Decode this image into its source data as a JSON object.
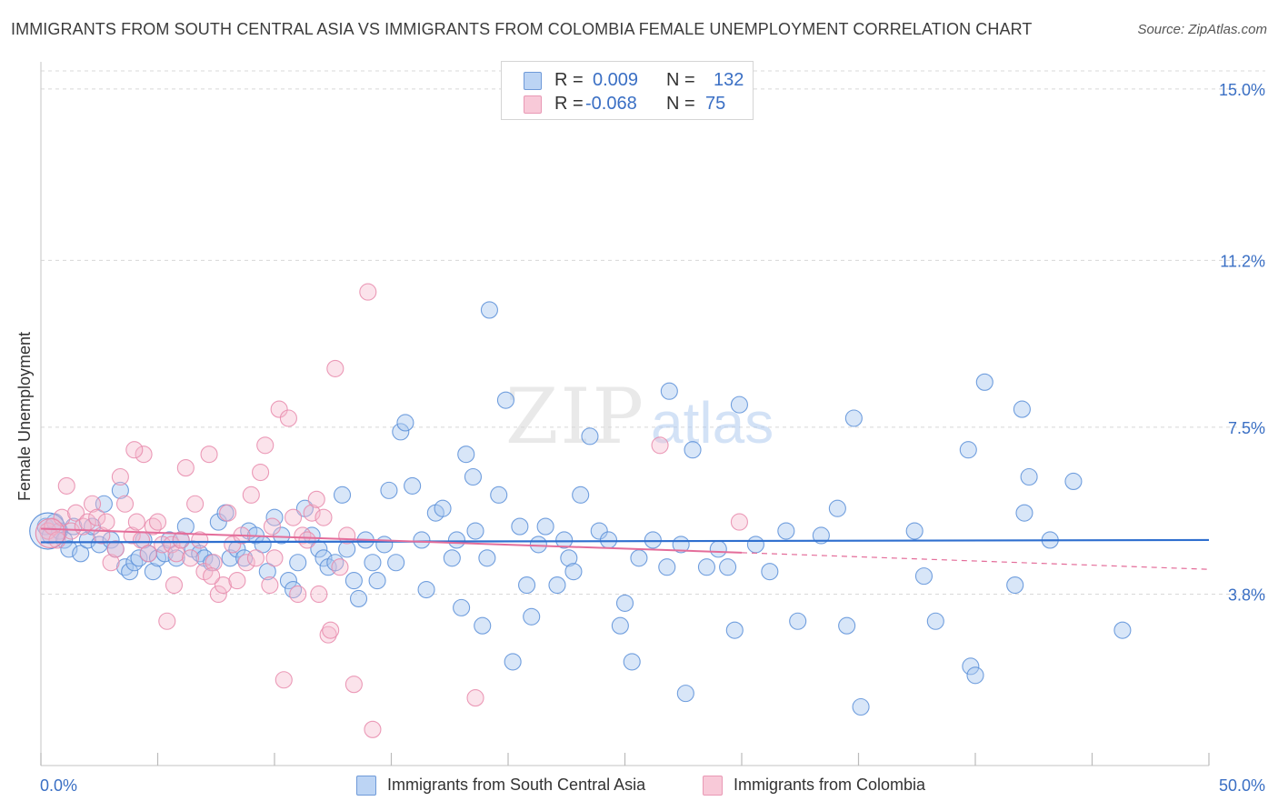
{
  "title": "IMMIGRANTS FROM SOUTH CENTRAL ASIA VS IMMIGRANTS FROM COLOMBIA FEMALE UNEMPLOYMENT CORRELATION CHART",
  "source": "Source: ZipAtlas.com",
  "watermark": {
    "zip": "ZIP",
    "atlas": "atlas"
  },
  "colors": {
    "blue": "#3a6fc4",
    "blue_fill": "#a9c7ef",
    "blue_line": "#2f6fcf",
    "pink": "#e46d9a",
    "pink_fill": "#f6b8cc",
    "grid": "#d8d8d8"
  },
  "legend": {
    "rows": [
      {
        "r_label": "R =",
        "r_value": "0.009",
        "n_label": "N =",
        "n_value": "132"
      },
      {
        "r_label": "R =",
        "r_value": "-0.068",
        "n_label": "N =",
        "n_value": "75"
      }
    ]
  },
  "bottom_legend": [
    {
      "label": "Immigrants from South Central Asia"
    },
    {
      "label": "Immigrants from Colombia"
    }
  ],
  "chart_data": {
    "type": "scatter",
    "title": "IMMIGRANTS FROM SOUTH CENTRAL ASIA VS IMMIGRANTS FROM COLOMBIA FEMALE UNEMPLOYMENT CORRELATION CHART",
    "xlabel": "",
    "ylabel": "Female Unemployment",
    "xlim": [
      0,
      50
    ],
    "ylim": [
      0,
      15.4
    ],
    "x_tick_labels": [
      "0.0%",
      "50.0%"
    ],
    "y_ticks": [
      3.8,
      7.5,
      11.2,
      15.0
    ],
    "y_tick_labels": [
      "3.8%",
      "7.5%",
      "11.2%",
      "15.0%"
    ],
    "grid": true,
    "legend_position": "top-center",
    "series": [
      {
        "name": "Immigrants from South Central Asia",
        "color": "#3a6fc4",
        "trend": {
          "x": [
            0,
            50
          ],
          "y": [
            4.95,
            5.0
          ],
          "style": "solid"
        },
        "points": [
          [
            0.2,
            5.3
          ],
          [
            0.4,
            5.1
          ],
          [
            0.6,
            5.4
          ],
          [
            0.8,
            5.2
          ],
          [
            1.0,
            5.0
          ],
          [
            1.2,
            4.8
          ],
          [
            1.4,
            5.3
          ],
          [
            1.7,
            4.7
          ],
          [
            2.0,
            5.0
          ],
          [
            2.2,
            5.3
          ],
          [
            2.5,
            4.9
          ],
          [
            2.7,
            5.8
          ],
          [
            3.0,
            5.0
          ],
          [
            3.2,
            4.8
          ],
          [
            3.4,
            6.1
          ],
          [
            3.6,
            4.4
          ],
          [
            3.8,
            4.3
          ],
          [
            4.0,
            4.5
          ],
          [
            4.2,
            4.6
          ],
          [
            4.4,
            5.0
          ],
          [
            4.6,
            4.7
          ],
          [
            4.8,
            4.3
          ],
          [
            5.0,
            4.6
          ],
          [
            5.3,
            4.7
          ],
          [
            5.5,
            5.0
          ],
          [
            5.8,
            4.6
          ],
          [
            6.0,
            5.0
          ],
          [
            6.2,
            5.3
          ],
          [
            6.5,
            4.8
          ],
          [
            6.8,
            4.7
          ],
          [
            7.0,
            4.6
          ],
          [
            7.3,
            4.5
          ],
          [
            7.6,
            5.4
          ],
          [
            7.9,
            5.6
          ],
          [
            8.1,
            4.6
          ],
          [
            8.4,
            4.8
          ],
          [
            8.7,
            4.6
          ],
          [
            8.9,
            5.2
          ],
          [
            9.2,
            5.1
          ],
          [
            9.5,
            4.9
          ],
          [
            9.7,
            4.3
          ],
          [
            10.0,
            5.5
          ],
          [
            10.3,
            5.1
          ],
          [
            10.6,
            4.1
          ],
          [
            10.8,
            3.9
          ],
          [
            11.0,
            4.5
          ],
          [
            11.3,
            5.7
          ],
          [
            11.6,
            5.1
          ],
          [
            11.9,
            4.8
          ],
          [
            12.1,
            4.6
          ],
          [
            12.3,
            4.4
          ],
          [
            12.6,
            4.5
          ],
          [
            12.9,
            6.0
          ],
          [
            13.1,
            4.8
          ],
          [
            13.4,
            4.1
          ],
          [
            13.6,
            3.7
          ],
          [
            13.9,
            5.0
          ],
          [
            14.2,
            4.5
          ],
          [
            14.4,
            4.1
          ],
          [
            14.7,
            4.9
          ],
          [
            14.9,
            6.1
          ],
          [
            15.2,
            4.5
          ],
          [
            15.4,
            7.4
          ],
          [
            15.6,
            7.6
          ],
          [
            15.9,
            6.2
          ],
          [
            16.3,
            5.0
          ],
          [
            16.5,
            3.9
          ],
          [
            16.9,
            5.6
          ],
          [
            17.2,
            5.7
          ],
          [
            17.6,
            4.6
          ],
          [
            17.8,
            5.0
          ],
          [
            18.0,
            3.5
          ],
          [
            18.2,
            6.9
          ],
          [
            18.6,
            5.2
          ],
          [
            18.9,
            3.1
          ],
          [
            19.1,
            4.6
          ],
          [
            19.2,
            10.1
          ],
          [
            19.6,
            6.0
          ],
          [
            19.9,
            8.1
          ],
          [
            20.2,
            2.3
          ],
          [
            20.5,
            5.3
          ],
          [
            20.8,
            4.0
          ],
          [
            21.0,
            3.3
          ],
          [
            21.3,
            4.9
          ],
          [
            21.6,
            5.3
          ],
          [
            22.1,
            4.0
          ],
          [
            22.4,
            5.0
          ],
          [
            22.6,
            4.6
          ],
          [
            22.8,
            4.3
          ],
          [
            23.1,
            6.0
          ],
          [
            23.5,
            7.3
          ],
          [
            23.9,
            5.2
          ],
          [
            24.3,
            5.0
          ],
          [
            24.8,
            3.1
          ],
          [
            25.0,
            3.6
          ],
          [
            25.3,
            2.3
          ],
          [
            25.6,
            4.6
          ],
          [
            26.2,
            5.0
          ],
          [
            26.8,
            4.4
          ],
          [
            26.9,
            8.3
          ],
          [
            27.4,
            4.9
          ],
          [
            27.6,
            1.6
          ],
          [
            27.9,
            7.0
          ],
          [
            28.5,
            4.4
          ],
          [
            29.0,
            4.8
          ],
          [
            29.4,
            4.4
          ],
          [
            29.7,
            3.0
          ],
          [
            29.9,
            8.0
          ],
          [
            30.6,
            4.9
          ],
          [
            31.2,
            4.3
          ],
          [
            31.9,
            5.2
          ],
          [
            32.4,
            3.2
          ],
          [
            33.4,
            5.1
          ],
          [
            34.1,
            5.7
          ],
          [
            34.5,
            3.1
          ],
          [
            34.8,
            7.7
          ],
          [
            35.1,
            1.3
          ],
          [
            37.4,
            5.2
          ],
          [
            37.8,
            4.2
          ],
          [
            38.3,
            3.2
          ],
          [
            39.7,
            7.0
          ],
          [
            39.8,
            2.2
          ],
          [
            40.4,
            8.5
          ],
          [
            41.7,
            4.0
          ],
          [
            42.0,
            7.9
          ],
          [
            42.1,
            5.6
          ],
          [
            42.3,
            6.4
          ],
          [
            43.2,
            5.0
          ],
          [
            44.2,
            6.3
          ],
          [
            46.3,
            3.0
          ],
          [
            40.0,
            2.0
          ],
          [
            18.5,
            6.4
          ]
        ]
      },
      {
        "name": "Immigrants from Colombia",
        "color": "#e46d9a",
        "trend": {
          "x": [
            0,
            30
          ],
          "y": [
            5.25,
            4.72
          ],
          "x_dashed": [
            30,
            50
          ],
          "y_dashed": [
            4.72,
            4.35
          ]
        },
        "points": [
          [
            0.3,
            5.2
          ],
          [
            0.5,
            5.3
          ],
          [
            0.7,
            5.0
          ],
          [
            0.9,
            5.5
          ],
          [
            1.1,
            6.2
          ],
          [
            1.3,
            5.2
          ],
          [
            1.5,
            5.6
          ],
          [
            1.8,
            5.3
          ],
          [
            2.0,
            5.4
          ],
          [
            2.2,
            5.8
          ],
          [
            2.4,
            5.5
          ],
          [
            2.6,
            5.1
          ],
          [
            2.8,
            5.4
          ],
          [
            3.0,
            4.5
          ],
          [
            3.2,
            4.8
          ],
          [
            3.4,
            6.4
          ],
          [
            3.6,
            5.8
          ],
          [
            3.9,
            5.1
          ],
          [
            4.1,
            5.4
          ],
          [
            4.3,
            5.0
          ],
          [
            4.4,
            6.9
          ],
          [
            4.6,
            4.7
          ],
          [
            4.8,
            5.3
          ],
          [
            5.0,
            5.4
          ],
          [
            5.2,
            4.9
          ],
          [
            5.4,
            3.2
          ],
          [
            5.6,
            4.9
          ],
          [
            5.8,
            4.7
          ],
          [
            6.0,
            5.0
          ],
          [
            6.2,
            6.6
          ],
          [
            6.4,
            4.6
          ],
          [
            6.6,
            5.8
          ],
          [
            6.8,
            5.0
          ],
          [
            7.0,
            4.3
          ],
          [
            7.2,
            6.9
          ],
          [
            7.4,
            4.5
          ],
          [
            7.6,
            3.8
          ],
          [
            7.8,
            4.0
          ],
          [
            8.0,
            5.6
          ],
          [
            8.2,
            4.9
          ],
          [
            8.4,
            4.1
          ],
          [
            8.6,
            5.1
          ],
          [
            8.8,
            4.5
          ],
          [
            9.0,
            6.0
          ],
          [
            9.2,
            4.6
          ],
          [
            9.4,
            6.5
          ],
          [
            9.6,
            7.1
          ],
          [
            9.8,
            4.0
          ],
          [
            10.0,
            4.6
          ],
          [
            10.2,
            7.9
          ],
          [
            10.4,
            1.9
          ],
          [
            10.6,
            7.7
          ],
          [
            10.8,
            5.5
          ],
          [
            11.0,
            3.8
          ],
          [
            11.2,
            5.1
          ],
          [
            11.4,
            5.0
          ],
          [
            11.6,
            5.6
          ],
          [
            11.8,
            5.9
          ],
          [
            11.9,
            3.8
          ],
          [
            12.1,
            5.5
          ],
          [
            12.3,
            2.9
          ],
          [
            12.4,
            3.0
          ],
          [
            12.6,
            8.8
          ],
          [
            12.8,
            4.4
          ],
          [
            13.1,
            5.1
          ],
          [
            13.4,
            1.8
          ],
          [
            14.0,
            10.5
          ],
          [
            14.2,
            0.8
          ],
          [
            18.6,
            1.5
          ],
          [
            26.5,
            7.1
          ],
          [
            29.9,
            5.4
          ],
          [
            4.0,
            7.0
          ],
          [
            7.3,
            4.2
          ],
          [
            5.7,
            4.0
          ],
          [
            9.9,
            5.3
          ]
        ]
      }
    ]
  }
}
